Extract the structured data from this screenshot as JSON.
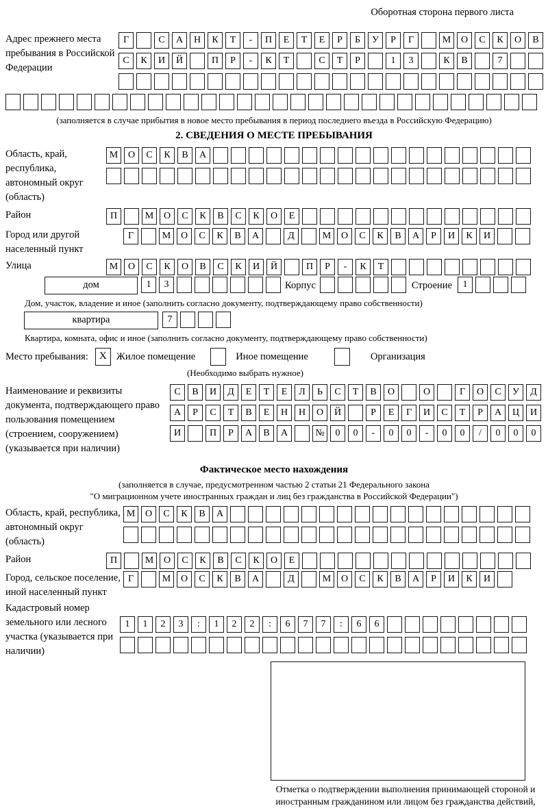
{
  "header": {
    "note": "Оборотная сторона первого листа"
  },
  "prev_address": {
    "label": "Адрес прежнего места пребывания в Российской Федерации",
    "rows": [
      {
        "t": "Г САНКТ-ПЕТЕРБУРГ МОСКОВ",
        "n": 24
      },
      {
        "t": "СКИЙ ПР-КТ СТР 13 КВ 7",
        "n": 24
      },
      {
        "t": "",
        "n": 24
      }
    ],
    "row_full": {
      "t": "",
      "n": 30
    },
    "note": "(заполняется в случае прибытия в новое место пребывания в период последнего въезда в Российскую Федерацию)"
  },
  "section2": {
    "title": "2. СВЕДЕНИЯ О МЕСТЕ ПРЕБЫВАНИЯ",
    "oblast": {
      "label": "Область, край, республика, автономный округ (область)",
      "rows": [
        {
          "t": "МОСКВА",
          "n": 24
        },
        {
          "t": "",
          "n": 24
        }
      ]
    },
    "rayon": {
      "label": "Район",
      "row": {
        "t": "П МОСКВСКОЕ",
        "n": 24
      }
    },
    "gorod": {
      "label": "Город или другой населенный пункт",
      "row": {
        "t": "Г МОСКВА Д МОСКВАРИКИ",
        "n": 23
      }
    },
    "ulitsa": {
      "label": "Улица",
      "row": {
        "t": "МОСКОВСКИЙ ПР-КТ",
        "n": 24
      }
    },
    "dom": {
      "box_label": "дом",
      "cells": {
        "t": "13",
        "n": 8
      },
      "korpus_label": "Корпус",
      "korpus_cells": {
        "t": "",
        "n": 5
      },
      "stroenie_label": "Строение",
      "stroenie_cells": {
        "t": "1",
        "n": 4
      },
      "caption": "Дом, участок, владение и иное (заполнить согласно документу, подтверждающему право собственности)"
    },
    "kvartira": {
      "box_label": "квартира",
      "cells": {
        "t": "7",
        "n": 4
      },
      "caption": "Квартира, комната, офис и иное (заполнить согласно документу, подтверждающему право собственности)"
    },
    "mesto": {
      "label": "Место пребывания:",
      "check1": {
        "t": "X",
        "n": 1
      },
      "opt1": "Жилое помещение",
      "check2": {
        "t": "",
        "n": 1
      },
      "opt2": "Иное помещение",
      "check3": {
        "t": "",
        "n": 1
      },
      "opt3": "Организация",
      "note": "(Необходимо выбрать нужное)"
    },
    "doc": {
      "label": "Наименование и реквизиты документа, подтверждающего право пользования помещением (строением, сооружением) (указывается при наличии)",
      "rows": [
        {
          "t": "СВИДЕТЕЛЬСТВО О ГОСУД",
          "n": 21
        },
        {
          "t": "АРСТВЕННОЙ РЕГИСТРАЦИ",
          "n": 21
        },
        {
          "t": "И ПРАВА №00-00-00/000",
          "n": 21
        }
      ]
    }
  },
  "factual": {
    "title": "Фактическое место нахождения",
    "note1": "(заполняется в случае, предусмотренном частью 2 статьи 21 Федерального закона",
    "note2": "\"О миграционном учете иностранных граждан и лиц без гражданства в Российской Федерации\")",
    "oblast": {
      "label": "Область, край, республика, автономный округ (область)",
      "rows": [
        {
          "t": "МОСКВА",
          "n": 23
        },
        {
          "t": "",
          "n": 23
        }
      ]
    },
    "rayon": {
      "label": "Район",
      "row": {
        "t": "П МОСКВСКОЕ",
        "n": 24
      }
    },
    "gorod": {
      "label": "Город, сельское поселение, иной населенный пункт",
      "row": {
        "t": "Г МОСКВА Д МОСКВАРИКИ",
        "n": 22
      }
    },
    "kadastr": {
      "label": "Кадастровый номер земельного или лесного участка (указывается при наличии)",
      "rows": [
        {
          "t": "1123:122:677:66",
          "n": 23
        },
        {
          "t": "",
          "n": 23
        }
      ]
    },
    "stamp_caption": "Отметка о подтверждении выполнения принимающей стороной и иностранным гражданином или лицом без гражданства действий, необходимых для его постановки на учет по месту пребывания"
  }
}
